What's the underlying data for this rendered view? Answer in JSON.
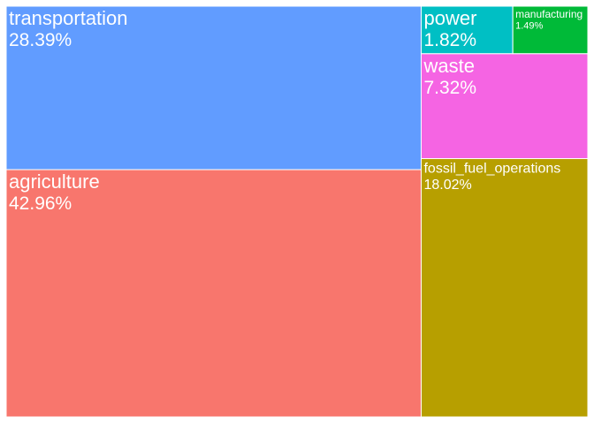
{
  "chart_data": {
    "type": "treemap",
    "title": "",
    "items": [
      {
        "name": "agriculture",
        "label": "42.96%",
        "value": 42.96,
        "color": "#F8766D"
      },
      {
        "name": "transportation",
        "label": "28.39%",
        "value": 28.39,
        "color": "#619CFF"
      },
      {
        "name": "fossil_fuel_operations",
        "label": "18.02%",
        "value": 18.02,
        "color": "#B79F00"
      },
      {
        "name": "waste",
        "label": "7.32%",
        "value": 7.32,
        "color": "#F564E3"
      },
      {
        "name": "power",
        "label": "1.82%",
        "value": 1.82,
        "color": "#00BFC4"
      },
      {
        "name": "manufacturing",
        "label": "1.49%",
        "value": 1.49,
        "color": "#00BA38"
      }
    ]
  }
}
